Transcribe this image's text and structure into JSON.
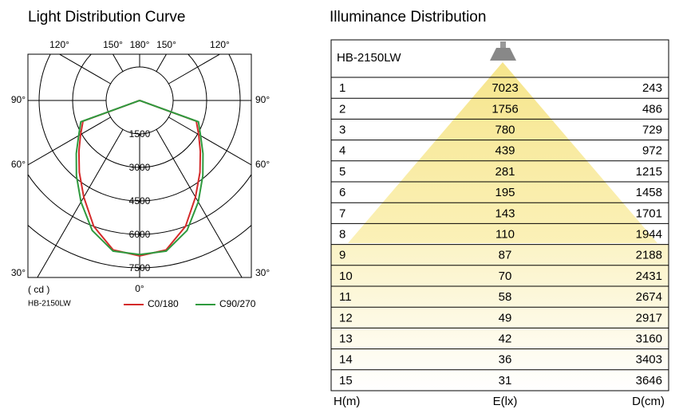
{
  "chart_data": {
    "type": "polar",
    "title": "Light Distribution Curve",
    "unit_label": "( cd )",
    "model": "HB-2150LW",
    "angles": [
      0,
      10,
      20,
      30,
      40,
      50,
      60,
      70,
      80,
      90
    ],
    "rlim": [
      0,
      7500
    ],
    "rticks": [
      1500,
      3000,
      4500,
      6000,
      7500
    ],
    "angle_ticks": [
      {
        "value": 0,
        "label": "0°"
      },
      {
        "value": 30,
        "label": "30°"
      },
      {
        "value": 60,
        "label": "60°"
      },
      {
        "value": 90,
        "label": "90°"
      },
      {
        "value": 120,
        "label": "120°"
      },
      {
        "value": 150,
        "label": "150°"
      },
      {
        "value": 180,
        "label": "180°"
      }
    ],
    "series": [
      {
        "name": "C0/180",
        "color": "#d42a2a",
        "values": [
          6960,
          6800,
          6000,
          5000,
          4200,
          3550,
          3050,
          2700,
          0,
          0
        ]
      },
      {
        "name": "C90/270",
        "color": "#2e9a3e",
        "values": [
          6900,
          6850,
          6200,
          5250,
          4400,
          3700,
          3150,
          2800,
          0,
          0
        ]
      }
    ]
  },
  "illuminance": {
    "title": "Illuminance Distribution",
    "model": "HB-2150LW",
    "columns": [
      "H(m)",
      "E(lx)",
      "D(cm)"
    ],
    "rows": [
      [
        "1",
        "7023",
        "243"
      ],
      [
        "2",
        "1756",
        "486"
      ],
      [
        "3",
        "780",
        "729"
      ],
      [
        "4",
        "439",
        "972"
      ],
      [
        "5",
        "281",
        "1215"
      ],
      [
        "6",
        "195",
        "1458"
      ],
      [
        "7",
        "143",
        "1701"
      ],
      [
        "8",
        "110",
        "1944"
      ],
      [
        "9",
        "87",
        "2188"
      ],
      [
        "10",
        "70",
        "2431"
      ],
      [
        "11",
        "58",
        "2674"
      ],
      [
        "12",
        "49",
        "2917"
      ],
      [
        "13",
        "42",
        "3160"
      ],
      [
        "14",
        "36",
        "3403"
      ],
      [
        "15",
        "31",
        "3646"
      ]
    ]
  }
}
